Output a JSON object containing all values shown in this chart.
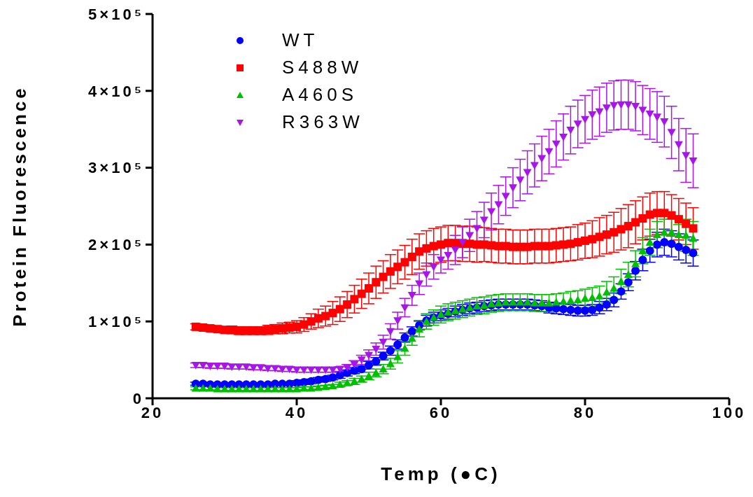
{
  "chart_data": {
    "type": "scatter",
    "xlabel": "Temp (●C)",
    "ylabel": "Protein Fluorescence",
    "xlim": [
      20,
      100
    ],
    "xticks": [
      20,
      40,
      60,
      80,
      100
    ],
    "ylim": [
      0,
      500000
    ],
    "yticks": [
      0,
      {
        "value": 100000,
        "label": "1×10⁵"
      },
      {
        "value": 200000,
        "label": "2×10⁵"
      },
      {
        "value": 300000,
        "label": "3×10⁵"
      },
      {
        "value": 400000,
        "label": "4×10⁵"
      },
      {
        "value": 500000,
        "label": "5×10⁵"
      }
    ],
    "grid": false,
    "legend": "top left",
    "x": [
      26,
      27,
      28,
      29,
      30,
      31,
      32,
      33,
      34,
      35,
      36,
      37,
      38,
      39,
      40,
      41,
      42,
      43,
      44,
      45,
      46,
      47,
      48,
      49,
      50,
      51,
      52,
      53,
      54,
      55,
      56,
      57,
      58,
      59,
      60,
      61,
      62,
      63,
      64,
      65,
      66,
      67,
      68,
      69,
      70,
      71,
      72,
      73,
      74,
      75,
      76,
      77,
      78,
      79,
      80,
      81,
      82,
      83,
      84,
      85,
      86,
      87,
      88,
      89,
      90,
      91,
      92,
      93,
      94,
      95
    ],
    "series": [
      {
        "name": "WT",
        "color": "#0000ff",
        "marker": "circle",
        "values": [
          19000,
          19000,
          18000,
          18000,
          18000,
          18000,
          18000,
          18000,
          18000,
          18000,
          18000,
          19000,
          19000,
          19000,
          20000,
          21000,
          22000,
          24000,
          25000,
          27000,
          30000,
          33000,
          36000,
          38000,
          43000,
          48000,
          55000,
          62000,
          70000,
          79000,
          87000,
          95000,
          101000,
          105000,
          108000,
          110000,
          113000,
          115000,
          117000,
          118000,
          120000,
          121000,
          122000,
          122000,
          122000,
          122000,
          122000,
          121000,
          120000,
          118000,
          117000,
          116000,
          115000,
          114000,
          114000,
          115000,
          118000,
          122000,
          128000,
          139000,
          151000,
          166000,
          180000,
          192000,
          200000,
          203000,
          201000,
          197000,
          193000,
          189000
        ],
        "errors": [
          2000,
          2000,
          2000,
          2000,
          2000,
          2000,
          2000,
          2000,
          2000,
          2000,
          2000,
          2000,
          2000,
          2000,
          3000,
          3000,
          3000,
          3000,
          3000,
          3000,
          4000,
          4000,
          4000,
          4000,
          5000,
          5000,
          5000,
          6000,
          6000,
          6000,
          6000,
          6000,
          7000,
          7000,
          7000,
          7000,
          7000,
          7000,
          7000,
          7000,
          7000,
          7000,
          7000,
          7000,
          7000,
          7000,
          7000,
          7000,
          7000,
          7000,
          7000,
          7000,
          7000,
          7000,
          7000,
          7000,
          8000,
          8000,
          9000,
          10000,
          11000,
          12000,
          14000,
          15000,
          16000,
          17000,
          17000,
          17000,
          17000,
          17000
        ]
      },
      {
        "name": "S488W",
        "color": "#ff0000",
        "marker": "square",
        "values": [
          93000,
          92000,
          91000,
          90000,
          89000,
          89000,
          88000,
          88000,
          88000,
          88000,
          89000,
          90000,
          91000,
          92000,
          93000,
          96000,
          100000,
          104000,
          107000,
          111000,
          116000,
          122000,
          129000,
          136000,
          143000,
          151000,
          158000,
          165000,
          171000,
          177000,
          184000,
          191000,
          195000,
          198000,
          200000,
          202000,
          202000,
          201000,
          201000,
          200000,
          200000,
          199000,
          198000,
          198000,
          197000,
          197000,
          197000,
          198000,
          198000,
          198000,
          199000,
          200000,
          201000,
          203000,
          205000,
          207000,
          210000,
          213000,
          216000,
          220000,
          224000,
          229000,
          234000,
          239000,
          241000,
          241000,
          238000,
          233000,
          227000,
          221000
        ],
        "errors": [
          4000,
          4000,
          4000,
          4000,
          4000,
          5000,
          5000,
          5000,
          5000,
          5000,
          6000,
          6000,
          7000,
          7000,
          8000,
          9000,
          10000,
          12000,
          13000,
          15000,
          16000,
          17000,
          18000,
          19000,
          20000,
          21000,
          21000,
          22000,
          22000,
          22000,
          23000,
          23000,
          23000,
          23000,
          23000,
          23000,
          23000,
          23000,
          23000,
          23000,
          22000,
          22000,
          22000,
          22000,
          22000,
          22000,
          22000,
          22000,
          22000,
          22000,
          22000,
          22000,
          22000,
          23000,
          23000,
          24000,
          25000,
          25000,
          26000,
          27000,
          28000,
          28000,
          28000,
          28000,
          28000,
          28000,
          27000,
          27000,
          27000,
          27000
        ]
      },
      {
        "name": "A460S",
        "color": "#00c000",
        "marker": "triangle",
        "values": [
          13000,
          13000,
          13000,
          12000,
          12000,
          12000,
          12000,
          12000,
          12000,
          12000,
          12000,
          12000,
          12000,
          12000,
          12000,
          13000,
          13000,
          14000,
          15000,
          16000,
          18000,
          20000,
          22000,
          25000,
          29000,
          33000,
          38000,
          45000,
          54000,
          65000,
          78000,
          90000,
          100000,
          105000,
          109000,
          112000,
          114000,
          116000,
          118000,
          120000,
          121000,
          123000,
          124000,
          125000,
          125000,
          125000,
          125000,
          124000,
          124000,
          124000,
          125000,
          126000,
          127000,
          128000,
          130000,
          131000,
          133000,
          138000,
          143000,
          152000,
          161000,
          175000,
          192000,
          203000,
          213000,
          216000,
          216000,
          213000,
          212000,
          208000
        ],
        "errors": [
          2000,
          2000,
          2000,
          2000,
          2000,
          2000,
          2000,
          2000,
          2000,
          2000,
          2000,
          2000,
          2000,
          2000,
          2000,
          2000,
          2000,
          2000,
          2000,
          2000,
          3000,
          3000,
          4000,
          4000,
          5000,
          5000,
          6000,
          7000,
          8000,
          9000,
          9000,
          10000,
          10000,
          10000,
          11000,
          11000,
          11000,
          11000,
          11000,
          11000,
          11000,
          11000,
          11000,
          11000,
          11000,
          11000,
          11000,
          11000,
          11000,
          11000,
          11000,
          11000,
          12000,
          12000,
          12000,
          13000,
          13000,
          14000,
          15000,
          16000,
          16000,
          17000,
          17000,
          17000,
          17000,
          17000,
          17000,
          13000,
          21000,
          22000
        ]
      },
      {
        "name": "R363W",
        "color": "#a815e8",
        "marker": "triangle-down",
        "values": [
          43000,
          43000,
          42000,
          42000,
          42000,
          41000,
          41000,
          41000,
          40000,
          40000,
          39000,
          39000,
          38000,
          38000,
          37000,
          37000,
          37000,
          37000,
          37000,
          37000,
          38000,
          40000,
          44000,
          50000,
          56000,
          64000,
          73000,
          87000,
          101000,
          118000,
          134000,
          149000,
          161000,
          171000,
          180000,
          186000,
          193000,
          203000,
          212000,
          221000,
          232000,
          243000,
          252000,
          263000,
          274000,
          284000,
          294000,
          303000,
          312000,
          321000,
          331000,
          340000,
          349000,
          357000,
          363000,
          369000,
          373000,
          378000,
          381000,
          382000,
          382000,
          380000,
          375000,
          370000,
          366000,
          360000,
          346000,
          330000,
          316000,
          309000
        ],
        "errors": [
          3000,
          3000,
          3000,
          3000,
          3000,
          3000,
          3000,
          3000,
          3000,
          3000,
          3000,
          3000,
          3000,
          3000,
          3000,
          3000,
          3000,
          3000,
          3000,
          3000,
          3000,
          4000,
          5000,
          6000,
          7000,
          8000,
          9000,
          10000,
          11000,
          12000,
          13000,
          14000,
          15000,
          16000,
          17000,
          18000,
          19000,
          20000,
          21000,
          22000,
          23000,
          24000,
          25000,
          25000,
          26000,
          27000,
          28000,
          28000,
          29000,
          29000,
          30000,
          30000,
          31000,
          31000,
          31000,
          32000,
          32000,
          32000,
          32000,
          32000,
          32000,
          32000,
          32000,
          33000,
          33000,
          33000,
          34000,
          34000,
          35000,
          35000
        ]
      }
    ]
  }
}
